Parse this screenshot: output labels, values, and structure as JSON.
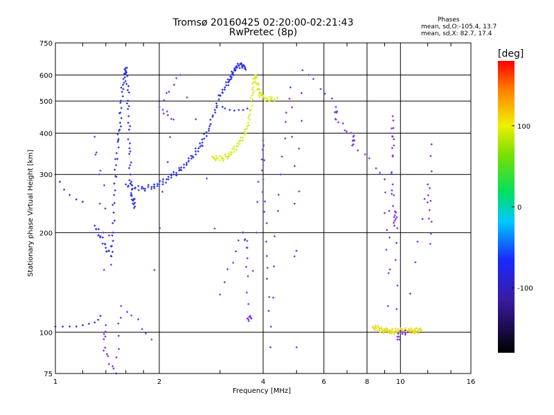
{
  "title": "Tromsø 20160425 02:20:00-02:21:43",
  "subtitle": "RwPretec (8p)",
  "stats": {
    "heading": "Phases",
    "line1": "mean, sd,O:-105.4, 13.7",
    "line2": "mean, sd,X:  82.7, 17.4"
  },
  "colorbar": {
    "unit": "[deg]",
    "min": -180,
    "max": 180,
    "ticks": [
      100,
      0,
      -100
    ]
  },
  "chart_data": {
    "type": "scatter",
    "xlabel": "Frequency [MHz]",
    "ylabel": "Stationary phase Virtual Height [km]",
    "x_scale": "log",
    "y_scale": "log",
    "xlim": [
      1,
      16
    ],
    "ylim": [
      75,
      750
    ],
    "x_ticks": [
      1,
      2,
      4,
      6,
      8,
      10,
      16
    ],
    "y_ticks": [
      75,
      100,
      200,
      300,
      400,
      500,
      600,
      750
    ],
    "grid": true,
    "series": [
      {
        "points": [
          [
            1.0,
            104
          ],
          [
            1.05,
            104
          ],
          [
            1.1,
            104
          ],
          [
            1.15,
            104
          ],
          [
            1.2,
            105
          ],
          [
            1.25,
            106
          ],
          [
            1.3,
            107
          ],
          [
            1.33,
            109
          ],
          [
            1.35,
            112
          ]
        ],
        "color": "#2a2fe6"
      },
      {
        "points": [
          [
            1.0,
            300
          ],
          [
            1.03,
            285
          ],
          [
            1.06,
            270
          ],
          [
            1.1,
            260
          ],
          [
            1.15,
            252
          ],
          [
            1.2,
            248
          ]
        ],
        "color": "#2a2fe6"
      },
      {
        "points": [
          [
            1.3,
            210
          ],
          [
            1.35,
            195
          ],
          [
            1.4,
            180
          ],
          [
            1.45,
            170
          ],
          [
            1.47,
            200
          ],
          [
            1.48,
            260
          ],
          [
            1.5,
            320
          ],
          [
            1.52,
            380
          ],
          [
            1.54,
            430
          ],
          [
            1.55,
            500
          ],
          [
            1.57,
            560
          ],
          [
            1.6,
            610
          ],
          [
            1.6,
            630
          ],
          [
            1.62,
            540
          ],
          [
            1.63,
            450
          ],
          [
            1.64,
            360
          ],
          [
            1.65,
            300
          ],
          [
            1.66,
            260
          ],
          [
            1.68,
            250
          ],
          [
            1.7,
            240
          ]
        ],
        "color": "#2a2fe6"
      },
      {
        "points": [
          [
            1.6,
            280
          ],
          [
            1.7,
            272
          ],
          [
            1.8,
            272
          ],
          [
            1.9,
            275
          ],
          [
            2.0,
            280
          ],
          [
            2.1,
            290
          ],
          [
            2.2,
            300
          ],
          [
            2.3,
            310
          ],
          [
            2.4,
            325
          ],
          [
            2.5,
            340
          ],
          [
            2.6,
            360
          ],
          [
            2.7,
            385
          ],
          [
            2.8,
            420
          ],
          [
            2.9,
            470
          ],
          [
            3.0,
            520
          ],
          [
            3.1,
            550
          ],
          [
            3.2,
            580
          ],
          [
            3.25,
            600
          ],
          [
            3.3,
            620
          ],
          [
            3.35,
            635
          ],
          [
            3.4,
            640
          ],
          [
            3.5,
            640
          ],
          [
            3.55,
            630
          ]
        ],
        "color": "#2a2fe6"
      },
      {
        "points": [
          [
            3.05,
            480
          ],
          [
            3.1,
            475
          ],
          [
            3.2,
            470
          ],
          [
            3.3,
            468
          ],
          [
            3.4,
            470
          ],
          [
            3.5,
            470
          ],
          [
            3.6,
            475
          ]
        ],
        "color": "#2a2fe6"
      },
      {
        "points": [
          [
            2.85,
            340
          ],
          [
            2.95,
            335
          ],
          [
            3.05,
            335
          ],
          [
            3.15,
            340
          ],
          [
            3.25,
            350
          ],
          [
            3.35,
            365
          ],
          [
            3.45,
            380
          ],
          [
            3.55,
            400
          ],
          [
            3.62,
            430
          ],
          [
            3.68,
            470
          ],
          [
            3.72,
            520
          ],
          [
            3.76,
            570
          ],
          [
            3.8,
            600
          ],
          [
            3.85,
            560
          ],
          [
            3.9,
            530
          ],
          [
            3.95,
            520
          ],
          [
            4.05,
            510
          ],
          [
            4.2,
            505
          ],
          [
            4.4,
            510
          ]
        ],
        "color": "#d8ea1c"
      },
      {
        "points": [
          [
            8.3,
            104
          ],
          [
            8.5,
            103
          ],
          [
            8.7,
            102
          ],
          [
            8.9,
            101
          ],
          [
            9.1,
            101
          ],
          [
            9.3,
            101
          ],
          [
            9.5,
            100
          ],
          [
            9.7,
            101
          ],
          [
            9.9,
            101
          ],
          [
            10.2,
            101
          ],
          [
            10.5,
            101
          ],
          [
            10.8,
            101
          ],
          [
            11.0,
            101
          ],
          [
            11.2,
            101
          ],
          [
            11.5,
            101
          ]
        ],
        "color": "#e6dc1e"
      },
      {
        "points": [
          [
            1.45,
            160
          ],
          [
            1.3,
            390
          ],
          [
            1.4,
            105
          ],
          [
            1.38,
            88
          ],
          [
            1.5,
            75
          ],
          [
            1.55,
            120
          ],
          [
            1.9,
            95
          ],
          [
            2.2,
            440
          ],
          [
            2.0,
            480
          ],
          [
            2.3,
            600
          ],
          [
            3.0,
            130
          ],
          [
            3.5,
            200
          ],
          [
            3.6,
            180
          ],
          [
            3.6,
            110
          ],
          [
            3.7,
            110
          ],
          [
            4.0,
            380
          ],
          [
            4.0,
            290
          ],
          [
            4.1,
            170
          ],
          [
            4.2,
            90
          ],
          [
            4.5,
            300
          ],
          [
            4.8,
            550
          ],
          [
            5.0,
            90
          ],
          [
            5.2,
            620
          ],
          [
            6.5,
            480
          ],
          [
            6.5,
            440
          ],
          [
            7.3,
            390
          ],
          [
            7.3,
            370
          ],
          [
            9.0,
            290
          ],
          [
            9.2,
            120
          ],
          [
            9.5,
            340
          ],
          [
            9.5,
            450
          ],
          [
            9.5,
            280
          ],
          [
            9.6,
            210
          ],
          [
            9.7,
            230
          ],
          [
            9.8,
            95
          ],
          [
            10.0,
            100
          ],
          [
            10.5,
            100
          ],
          [
            12.0,
            280
          ],
          [
            12.2,
            185
          ],
          [
            12.3,
            370
          ]
        ],
        "color": "#7a2fe6"
      }
    ]
  }
}
